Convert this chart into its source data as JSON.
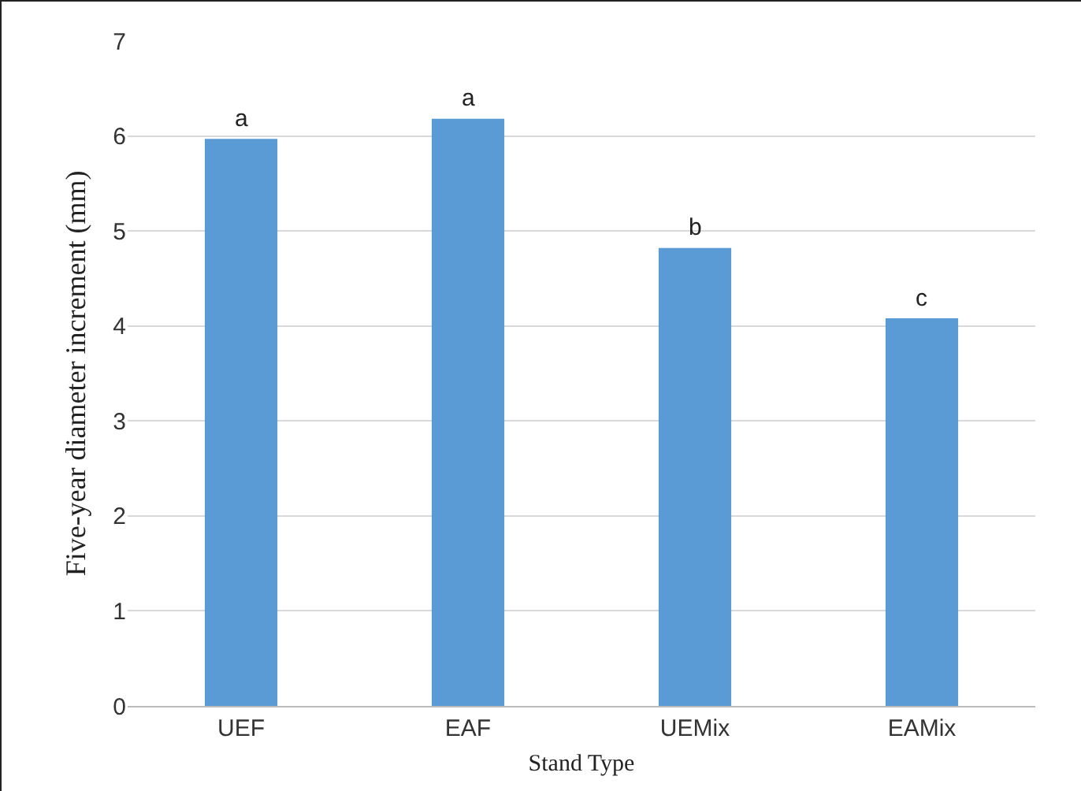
{
  "chart_data": {
    "type": "bar",
    "xlabel": "Stand Type",
    "ylabel": "Five-year diameter increment (mm)",
    "categories": [
      "UEF",
      "EAF",
      "UEMix",
      "EAMix"
    ],
    "values": [
      5.97,
      6.18,
      4.82,
      4.08
    ],
    "color": "#5b9bd5",
    "ylim": [
      0,
      7
    ],
    "yticks": [
      0,
      1,
      2,
      3,
      4,
      5,
      6,
      7
    ],
    "grid": "y",
    "legend": false,
    "annotations": [
      {
        "text": "a",
        "x": "UEF",
        "y": 5.97
      },
      {
        "text": "a",
        "x": "EAF",
        "y": 6.18
      },
      {
        "text": "b",
        "x": "UEMix",
        "y": 4.82
      },
      {
        "text": "c",
        "x": "EAMix",
        "y": 4.08
      }
    ]
  }
}
